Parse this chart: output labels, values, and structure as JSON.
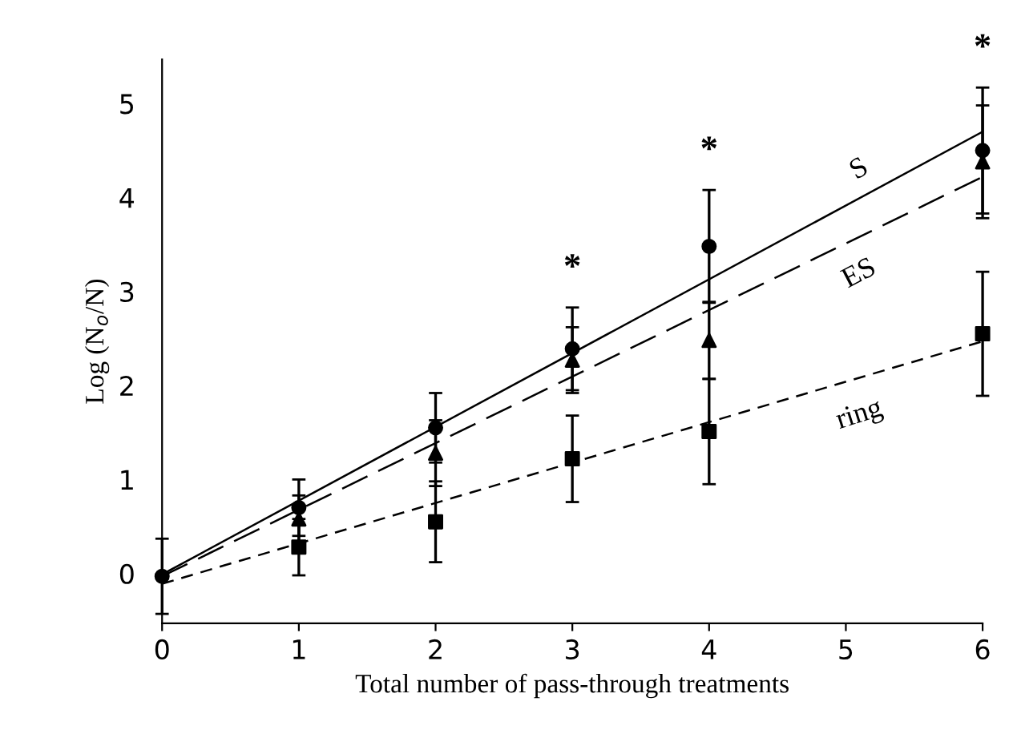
{
  "chart_data": {
    "type": "scatter",
    "xlabel": "Total number of pass-through treatments",
    "ylabel": "Log (N$_{o}$/N)",
    "xlim": [
      0,
      6
    ],
    "xticks": [
      0,
      1,
      2,
      3,
      4,
      5,
      6
    ],
    "ylim": [
      -0.5,
      5.5
    ],
    "yticks": [
      0,
      1,
      2,
      3,
      4,
      5
    ],
    "grid": false,
    "legend": false,
    "series": [
      {
        "color": "#000000",
        "marker": "circle",
        "x": [
          0,
          1,
          2,
          3,
          4,
          6
        ],
        "values": [
          0,
          0.73,
          1.58,
          2.42,
          3.51,
          4.53
        ],
        "errors": [
          0.4,
          0.3,
          0.37,
          0.44,
          0.6,
          0.67
        ]
      },
      {
        "color": "#000000",
        "marker": "triangle",
        "x": [
          1,
          2,
          3,
          4,
          6
        ],
        "values": [
          0.61,
          1.31,
          2.3,
          2.51,
          4.41
        ],
        "errors": [
          0.25,
          0.35,
          0.35,
          0.41,
          0.6
        ]
      },
      {
        "color": "#000000",
        "marker": "square",
        "x": [
          1,
          2,
          3,
          4,
          6
        ],
        "values": [
          0.31,
          0.58,
          1.25,
          1.54,
          2.58
        ],
        "errors": [
          0.3,
          0.43,
          0.46,
          0.56,
          0.66
        ]
      },
      {
        "type": "line",
        "name": "S",
        "color": "#000000",
        "line_style": "solid",
        "x": [
          0,
          6
        ],
        "values": [
          0.02,
          4.73
        ]
      },
      {
        "type": "line",
        "name": "ES",
        "color": "#000000",
        "line_style": "longdash",
        "x": [
          0,
          6
        ],
        "values": [
          0.0,
          4.25
        ]
      },
      {
        "type": "line",
        "name": "ring",
        "color": "#000000",
        "line_style": "dashed",
        "x": [
          0,
          6
        ],
        "values": [
          -0.08,
          2.5
        ]
      }
    ],
    "annotations": [
      "*",
      "*",
      "*"
    ]
  }
}
